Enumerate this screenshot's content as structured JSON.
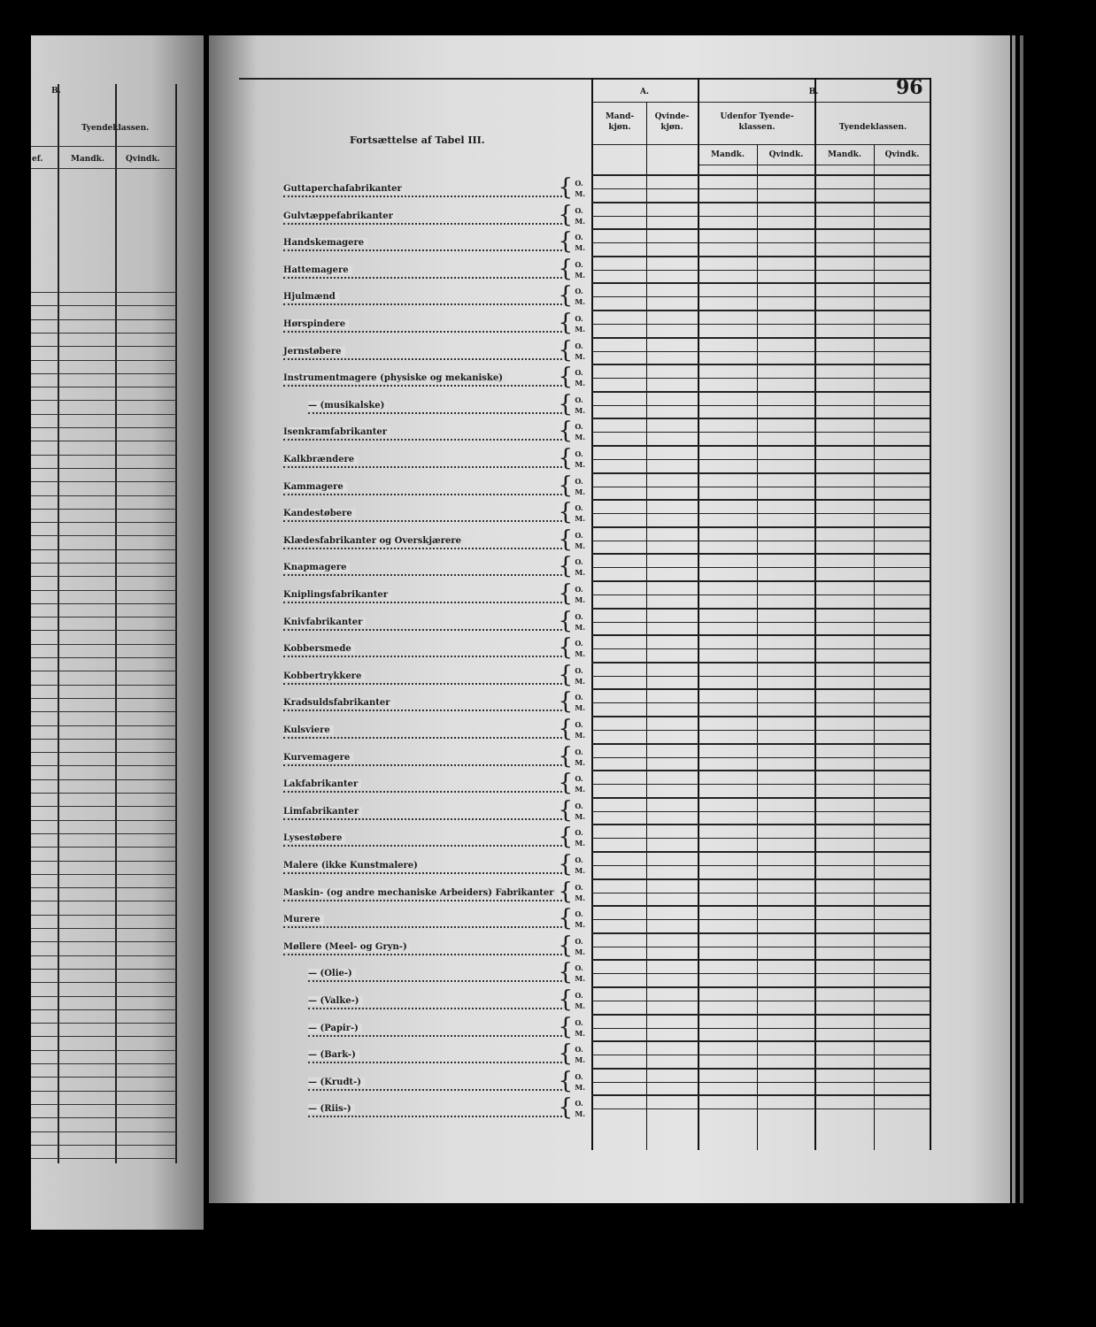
{
  "page_number": "96",
  "title": "Fortsættelse af Tabel III.",
  "left_page": {
    "section": "B.",
    "group": "Tyendeklassen.",
    "col_left_partial": "ef.",
    "col_mand": "Mandk.",
    "col_qvind": "Qvindk."
  },
  "header": {
    "group_a": "A.",
    "group_b": "B.",
    "a_cols": [
      "Mand-kjøn.",
      "Qvinde-kjøn."
    ],
    "b_groups": [
      "Udenfor Tyende-klassen.",
      "Tyendeklassen."
    ],
    "b_subcols": [
      "Mandk.",
      "Qvindk.",
      "Mandk.",
      "Qvindk."
    ]
  },
  "row_markers": [
    "O.",
    "M."
  ],
  "rows": [
    {
      "label": "Guttaperchafabrikanter"
    },
    {
      "label": "Gulvtæppefabrikanter"
    },
    {
      "label": "Handskemagere"
    },
    {
      "label": "Hattemagere"
    },
    {
      "label": "Hjulmænd"
    },
    {
      "label": "Hørspindere"
    },
    {
      "label": "Jernstøbere"
    },
    {
      "label": "Instrumentmagere (physiske og mekaniske)"
    },
    {
      "label": "—            (musikalske)",
      "indent": true
    },
    {
      "label": "Isenkramfabrikanter"
    },
    {
      "label": "Kalkbrændere"
    },
    {
      "label": "Kammagere"
    },
    {
      "label": "Kandestøbere"
    },
    {
      "label": "Klædesfabrikanter og Overskjærere"
    },
    {
      "label": "Knapmagere"
    },
    {
      "label": "Kniplingsfabrikanter"
    },
    {
      "label": "Knivfabrikanter"
    },
    {
      "label": "Kobbersmede"
    },
    {
      "label": "Kobbertrykkere"
    },
    {
      "label": "Kradsuldsfabrikanter"
    },
    {
      "label": "Kulsviere"
    },
    {
      "label": "Kurvemagere"
    },
    {
      "label": "Lakfabrikanter"
    },
    {
      "label": "Limfabrikanter"
    },
    {
      "label": "Lysestøbere"
    },
    {
      "label": "Malere (ikke Kunstmalere)"
    },
    {
      "label": "Maskin- (og andre mechaniske Arbeiders) Fabrikanter"
    },
    {
      "label": "Murere"
    },
    {
      "label": "Møllere (Meel- og Gryn-)"
    },
    {
      "label": "—   (Olie-)",
      "indent": true
    },
    {
      "label": "—   (Valke-)",
      "indent": true
    },
    {
      "label": "—   (Papir-)",
      "indent": true
    },
    {
      "label": "—   (Bark-)",
      "indent": true
    },
    {
      "label": "—   (Krudt-)",
      "indent": true
    },
    {
      "label": "—   (Riis-)",
      "indent": true
    }
  ]
}
